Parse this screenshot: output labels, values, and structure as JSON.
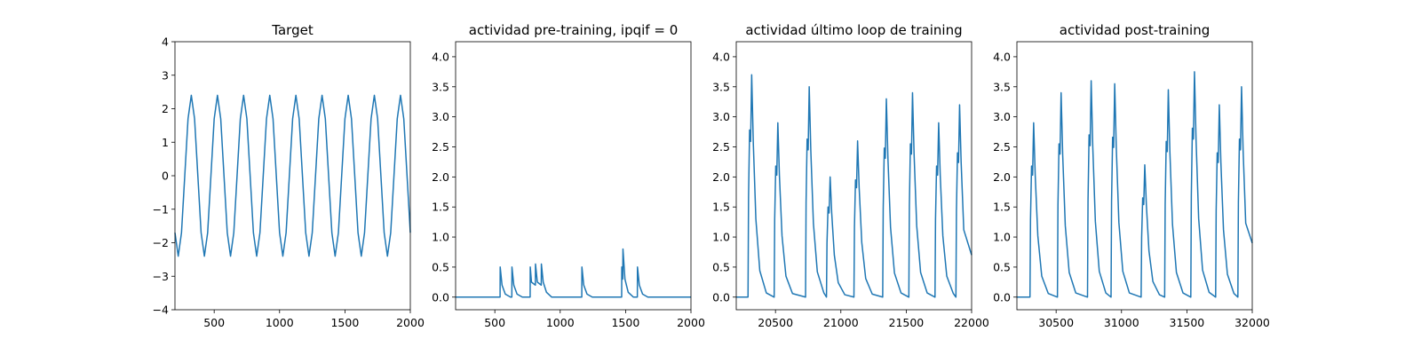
{
  "chart_data": [
    {
      "type": "line",
      "title": "Target",
      "color": "#1f77b4",
      "x": [
        200,
        225,
        250,
        275,
        300,
        325,
        350,
        375,
        400,
        425,
        450,
        475,
        500,
        525,
        550,
        575,
        600,
        625,
        650,
        675,
        700,
        725,
        750,
        775,
        800,
        825,
        850,
        875,
        900,
        925,
        950,
        975,
        1000,
        1025,
        1050,
        1075,
        1100,
        1125,
        1150,
        1175,
        1200,
        1225,
        1250,
        1275,
        1300,
        1325,
        1350,
        1375,
        1400,
        1425,
        1450,
        1475,
        1500,
        1525,
        1550,
        1575,
        1600,
        1625,
        1650,
        1675,
        1700,
        1725,
        1750,
        1775,
        1800,
        1825,
        1850,
        1875,
        1900,
        1925,
        1950,
        1975,
        2000
      ],
      "values": [
        -1.7,
        -2.4,
        -1.7,
        0,
        1.7,
        2.4,
        1.7,
        0,
        -1.7,
        -2.4,
        -1.7,
        0,
        1.7,
        2.4,
        1.7,
        0,
        -1.7,
        -2.4,
        -1.7,
        0,
        1.7,
        2.4,
        1.7,
        0,
        -1.7,
        -2.4,
        -1.7,
        0,
        1.7,
        2.4,
        1.7,
        0,
        -1.7,
        -2.4,
        -1.7,
        0,
        1.7,
        2.4,
        1.7,
        0,
        -1.7,
        -2.4,
        -1.7,
        0,
        1.7,
        2.4,
        1.7,
        0,
        -1.7,
        -2.4,
        -1.7,
        0,
        1.7,
        2.4,
        1.7,
        0,
        -1.7,
        -2.4,
        -1.7,
        0,
        1.7,
        2.4,
        1.7,
        0,
        -1.7,
        -2.4,
        -1.7,
        0,
        1.7,
        2.4,
        1.7,
        0,
        -1.7
      ],
      "xlim": [
        200,
        2000
      ],
      "xticks": [
        500,
        1000,
        1500,
        2000
      ],
      "ylim": [
        -4,
        4
      ],
      "yticks": [
        {
          "value": -4,
          "label": "−4"
        },
        {
          "value": -3,
          "label": "−3"
        },
        {
          "value": -2,
          "label": "−2"
        },
        {
          "value": -1,
          "label": "−1"
        },
        0,
        1,
        2,
        3,
        4
      ]
    },
    {
      "type": "line",
      "title": "actividad pre-training, ipqif = 0",
      "color": "#1f77b4",
      "x": [
        200,
        540,
        541,
        555,
        580,
        620,
        630,
        631,
        645,
        670,
        710,
        770,
        771,
        780,
        810,
        811,
        825,
        855,
        856,
        870,
        895,
        935,
        1165,
        1166,
        1180,
        1205,
        1245,
        1470,
        1471,
        1478,
        1480,
        1495,
        1520,
        1560,
        1590,
        1591,
        1605,
        1630,
        1670,
        2000
      ],
      "values": [
        0,
        0,
        0.5,
        0.2,
        0.05,
        0,
        0,
        0.5,
        0.2,
        0.05,
        0,
        0,
        0.5,
        0.25,
        0.2,
        0.55,
        0.25,
        0.2,
        0.55,
        0.25,
        0.08,
        0,
        0,
        0.5,
        0.2,
        0.05,
        0,
        0,
        0.5,
        0.3,
        0.8,
        0.3,
        0.08,
        0,
        0,
        0.5,
        0.2,
        0.05,
        0,
        0
      ],
      "xlim": [
        200,
        2000
      ],
      "xticks": [
        500,
        1000,
        1500,
        2000
      ],
      "ylim": [
        -0.21,
        4.25
      ],
      "yticks": [
        {
          "value": 0,
          "label": "0.0"
        },
        0.5,
        {
          "value": 1,
          "label": "1.0"
        },
        1.5,
        {
          "value": 2,
          "label": "2.0"
        },
        2.5,
        {
          "value": 3,
          "label": "3.0"
        },
        3.5,
        {
          "value": 4,
          "label": "4.0"
        }
      ]
    },
    {
      "type": "line",
      "title": "actividad último loop de training",
      "color": "#1f77b4",
      "x": [
        20200,
        20290,
        20294,
        20302,
        20310,
        20318,
        20330,
        20350,
        20380,
        20430,
        20490,
        20494,
        20502,
        20510,
        20518,
        20530,
        20550,
        20580,
        20630,
        20730,
        20734,
        20742,
        20750,
        20758,
        20770,
        20790,
        20820,
        20870,
        20890,
        20894,
        20902,
        20910,
        20918,
        20930,
        20950,
        20980,
        21030,
        21100,
        21104,
        21112,
        21120,
        21128,
        21140,
        21160,
        21190,
        21240,
        21320,
        21324,
        21332,
        21340,
        21348,
        21360,
        21380,
        21410,
        21460,
        21520,
        21524,
        21532,
        21540,
        21548,
        21560,
        21580,
        21610,
        21660,
        21720,
        21724,
        21732,
        21740,
        21748,
        21760,
        21780,
        21810,
        21860,
        21880,
        21884,
        21892,
        21900,
        21908,
        21920,
        21940,
        22000
      ],
      "values": [
        0,
        0,
        1.67,
        2.78,
        2.59,
        3.7,
        2.59,
        1.3,
        0.44,
        0.07,
        0,
        1.3,
        2.18,
        2.03,
        2.9,
        2.03,
        1.02,
        0.35,
        0.06,
        0,
        1.58,
        2.63,
        2.45,
        3.5,
        2.45,
        1.23,
        0.42,
        0.07,
        0,
        0.9,
        1.5,
        1.4,
        2.0,
        1.4,
        0.7,
        0.24,
        0.04,
        0,
        1.17,
        1.95,
        1.82,
        2.6,
        1.82,
        0.91,
        0.31,
        0.05,
        0,
        1.49,
        2.48,
        2.31,
        3.3,
        2.31,
        1.16,
        0.4,
        0.07,
        0,
        1.53,
        2.55,
        2.38,
        3.4,
        2.38,
        1.19,
        0.41,
        0.07,
        0,
        1.3,
        2.18,
        2.03,
        2.9,
        2.03,
        1.02,
        0.35,
        0.06,
        0,
        1.44,
        2.4,
        2.24,
        3.2,
        2.24,
        1.12,
        0.7
      ],
      "xlim": [
        20200,
        22000
      ],
      "xticks": [
        20500,
        21000,
        21500,
        22000
      ],
      "ylim": [
        -0.21,
        4.25
      ],
      "yticks": [
        {
          "value": 0,
          "label": "0.0"
        },
        0.5,
        {
          "value": 1,
          "label": "1.0"
        },
        1.5,
        {
          "value": 2,
          "label": "2.0"
        },
        2.5,
        {
          "value": 3,
          "label": "3.0"
        },
        3.5,
        {
          "value": 4,
          "label": "4.0"
        }
      ]
    },
    {
      "type": "line",
      "title": "actividad post-training",
      "color": "#1f77b4",
      "x": [
        30200,
        30300,
        30304,
        30312,
        30320,
        30328,
        30340,
        30360,
        30390,
        30440,
        30510,
        30514,
        30522,
        30530,
        30538,
        30550,
        30570,
        30600,
        30650,
        30740,
        30744,
        30752,
        30760,
        30768,
        30780,
        30800,
        30830,
        30880,
        30920,
        30924,
        30932,
        30940,
        30948,
        30960,
        30980,
        31010,
        31060,
        31150,
        31154,
        31162,
        31170,
        31178,
        31190,
        31210,
        31240,
        31290,
        31330,
        31334,
        31342,
        31350,
        31358,
        31370,
        31390,
        31420,
        31470,
        31530,
        31534,
        31542,
        31550,
        31558,
        31570,
        31590,
        31620,
        31670,
        31720,
        31724,
        31732,
        31740,
        31748,
        31760,
        31780,
        31810,
        31860,
        31890,
        31894,
        31902,
        31910,
        31918,
        31930,
        31950,
        32000
      ],
      "values": [
        0,
        0,
        1.3,
        2.18,
        2.03,
        2.9,
        2.03,
        1.02,
        0.35,
        0.06,
        0,
        1.53,
        2.55,
        2.38,
        3.4,
        2.38,
        1.19,
        0.41,
        0.07,
        0,
        1.62,
        2.7,
        2.52,
        3.6,
        2.52,
        1.26,
        0.43,
        0.07,
        0,
        1.6,
        2.66,
        2.49,
        3.55,
        2.49,
        1.24,
        0.43,
        0.07,
        0,
        0.99,
        1.65,
        1.54,
        2.2,
        1.54,
        0.77,
        0.26,
        0.04,
        0,
        1.55,
        2.59,
        2.42,
        3.45,
        2.42,
        1.21,
        0.41,
        0.07,
        0,
        1.69,
        2.81,
        2.63,
        3.75,
        2.63,
        1.31,
        0.45,
        0.08,
        0,
        1.44,
        2.4,
        2.24,
        3.2,
        2.24,
        1.12,
        0.38,
        0.06,
        0,
        1.58,
        2.63,
        2.45,
        3.5,
        2.45,
        1.23,
        0.9
      ],
      "xlim": [
        30200,
        32000
      ],
      "xticks": [
        30500,
        31000,
        31500,
        32000
      ],
      "ylim": [
        -0.21,
        4.25
      ],
      "yticks": [
        {
          "value": 0,
          "label": "0.0"
        },
        0.5,
        {
          "value": 1,
          "label": "1.0"
        },
        1.5,
        {
          "value": 2,
          "label": "2.0"
        },
        2.5,
        {
          "value": 3,
          "label": "3.0"
        },
        3.5,
        {
          "value": 4,
          "label": "4.0"
        }
      ]
    }
  ]
}
